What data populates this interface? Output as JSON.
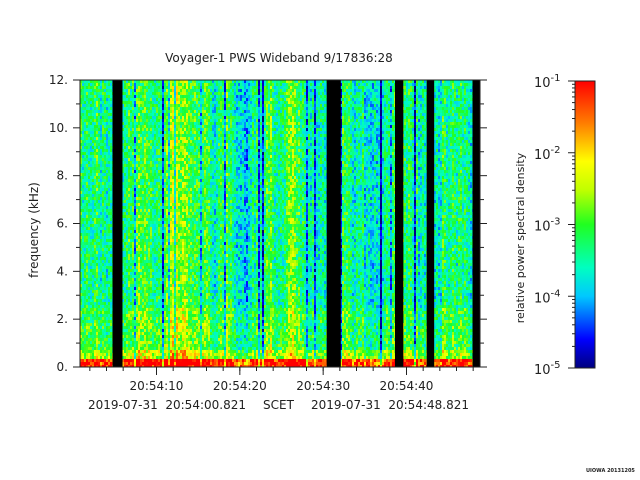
{
  "chart_data": {
    "type": "heatmap",
    "title": "Voyager-1 PWS Wideband 9/17836:28",
    "ylabel": "frequency (kHz)",
    "ylim": [
      0,
      12
    ],
    "y_ticks": [
      {
        "value": 0,
        "label": "0."
      },
      {
        "value": 2,
        "label": "2."
      },
      {
        "value": 4,
        "label": "4."
      },
      {
        "value": 6,
        "label": "6."
      },
      {
        "value": 8,
        "label": "8."
      },
      {
        "value": 10,
        "label": "10."
      },
      {
        "value": 12,
        "label": "12."
      }
    ],
    "x_range_seconds": [
      0,
      48
    ],
    "x_ticks": [
      {
        "value": 9.18,
        "label": "20:54:10"
      },
      {
        "value": 19.18,
        "label": "20:54:20"
      },
      {
        "value": 29.18,
        "label": "20:54:30"
      },
      {
        "value": 39.18,
        "label": "20:54:40"
      }
    ],
    "x_footer": {
      "start": "2019-07-31  20:54:00.821",
      "frame": "SCET",
      "end": "2019-07-31  20:54:48.821"
    },
    "data_gaps_seconds": [
      [
        3.9,
        5.1
      ],
      [
        29.6,
        31.3
      ],
      [
        37.8,
        38.8
      ],
      [
        41.6,
        42.5
      ],
      [
        47.1,
        48.0
      ]
    ],
    "colorbar": {
      "label": "relative power spectral density",
      "scale": "log",
      "range": [
        1e-05,
        0.1
      ],
      "ticks": [
        {
          "value": 1e-05,
          "base": "10",
          "exp": "-5"
        },
        {
          "value": 0.0001,
          "base": "10",
          "exp": "-4"
        },
        {
          "value": 0.001,
          "base": "10",
          "exp": "-3"
        },
        {
          "value": 0.01,
          "base": "10",
          "exp": "-2"
        },
        {
          "value": 0.1,
          "base": "10",
          "exp": "-1"
        }
      ]
    },
    "credit": "UIOWA 20131205"
  }
}
